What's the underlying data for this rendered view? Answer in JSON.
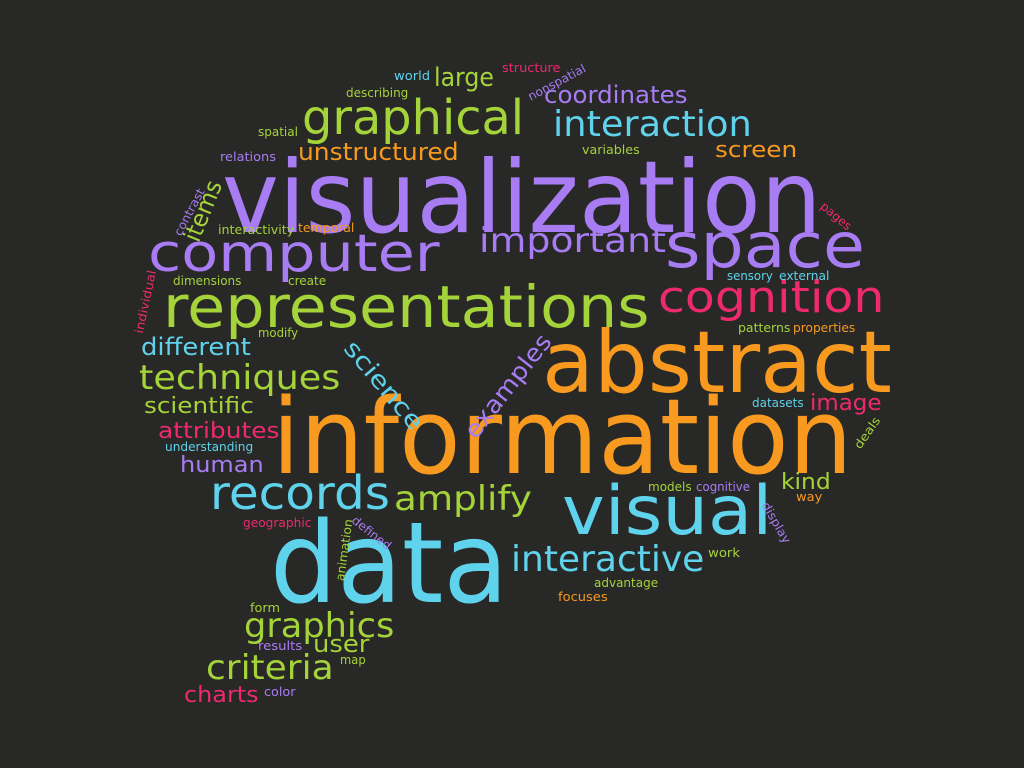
{
  "title": "",
  "background": "#282826",
  "palette": {
    "purple": "#a87cf3",
    "orange": "#f79a1f",
    "green": "#a5d33a",
    "cyan": "#5fd2ec",
    "pink": "#ee2a6c"
  },
  "words": [
    {
      "text": "visualization",
      "color": "purple"
    },
    {
      "text": "information",
      "color": "orange"
    },
    {
      "text": "data",
      "color": "cyan"
    },
    {
      "text": "abstract",
      "color": "orange"
    },
    {
      "text": "space",
      "color": "purple"
    },
    {
      "text": "representations",
      "color": "green"
    },
    {
      "text": "visual",
      "color": "cyan"
    },
    {
      "text": "computer",
      "color": "purple"
    },
    {
      "text": "cognition",
      "color": "pink"
    },
    {
      "text": "graphical",
      "color": "green"
    },
    {
      "text": "records",
      "color": "cyan"
    },
    {
      "text": "interaction",
      "color": "cyan"
    },
    {
      "text": "important",
      "color": "purple"
    },
    {
      "text": "interactive",
      "color": "cyan"
    },
    {
      "text": "techniques",
      "color": "green"
    },
    {
      "text": "amplify",
      "color": "green"
    },
    {
      "text": "graphics",
      "color": "green"
    },
    {
      "text": "criteria",
      "color": "green"
    },
    {
      "text": "coordinates",
      "color": "purple"
    },
    {
      "text": "unstructured",
      "color": "orange"
    },
    {
      "text": "examples",
      "color": "purple"
    },
    {
      "text": "science",
      "color": "cyan"
    },
    {
      "text": "different",
      "color": "cyan"
    },
    {
      "text": "scientific",
      "color": "green"
    },
    {
      "text": "attributes",
      "color": "pink"
    },
    {
      "text": "human",
      "color": "purple"
    },
    {
      "text": "image",
      "color": "pink"
    },
    {
      "text": "screen",
      "color": "orange"
    },
    {
      "text": "large",
      "color": "green"
    },
    {
      "text": "items",
      "color": "green"
    },
    {
      "text": "user",
      "color": "green"
    },
    {
      "text": "charts",
      "color": "pink"
    },
    {
      "text": "kind",
      "color": "green"
    },
    {
      "text": "structure",
      "color": "pink"
    },
    {
      "text": "nonspatial",
      "color": "purple"
    },
    {
      "text": "world",
      "color": "cyan"
    },
    {
      "text": "describing",
      "color": "green"
    },
    {
      "text": "spatial",
      "color": "green"
    },
    {
      "text": "relations",
      "color": "purple"
    },
    {
      "text": "variables",
      "color": "green"
    },
    {
      "text": "contrast",
      "color": "purple"
    },
    {
      "text": "interactivity",
      "color": "green"
    },
    {
      "text": "temporal",
      "color": "orange"
    },
    {
      "text": "pages",
      "color": "pink"
    },
    {
      "text": "dimensions",
      "color": "green"
    },
    {
      "text": "create",
      "color": "green"
    },
    {
      "text": "sensory",
      "color": "cyan"
    },
    {
      "text": "external",
      "color": "cyan"
    },
    {
      "text": "individual",
      "color": "pink"
    },
    {
      "text": "modify",
      "color": "green"
    },
    {
      "text": "patterns",
      "color": "green"
    },
    {
      "text": "properties",
      "color": "orange"
    },
    {
      "text": "datasets",
      "color": "cyan"
    },
    {
      "text": "deals",
      "color": "green"
    },
    {
      "text": "understanding",
      "color": "cyan"
    },
    {
      "text": "models",
      "color": "green"
    },
    {
      "text": "cognitive",
      "color": "purple"
    },
    {
      "text": "way",
      "color": "orange"
    },
    {
      "text": "display",
      "color": "purple"
    },
    {
      "text": "geographic",
      "color": "pink"
    },
    {
      "text": "defined",
      "color": "purple"
    },
    {
      "text": "animation",
      "color": "green"
    },
    {
      "text": "work",
      "color": "green"
    },
    {
      "text": "advantage",
      "color": "green"
    },
    {
      "text": "focuses",
      "color": "orange"
    },
    {
      "text": "form",
      "color": "green"
    },
    {
      "text": "results",
      "color": "purple"
    },
    {
      "text": "map",
      "color": "green"
    },
    {
      "text": "color",
      "color": "purple"
    }
  ]
}
